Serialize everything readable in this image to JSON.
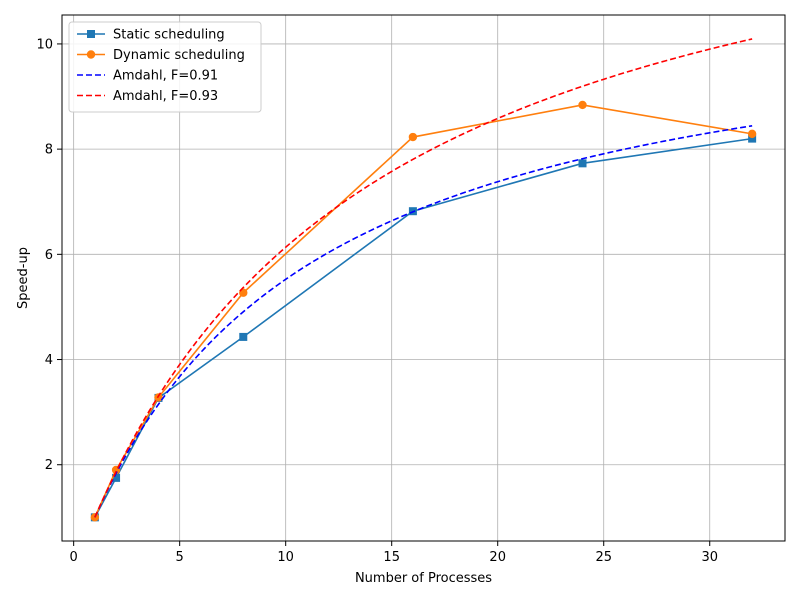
{
  "chart_data": {
    "type": "line",
    "xlabel": "Number of Processes",
    "ylabel": "Speed-up",
    "xlim": [
      -0.55,
      33.55
    ],
    "ylim": [
      0.55,
      10.55
    ],
    "xticks": [
      0,
      5,
      10,
      15,
      20,
      25,
      30
    ],
    "yticks": [
      2,
      4,
      6,
      8,
      10
    ],
    "grid": true,
    "legend_position": "top-left",
    "series": [
      {
        "name": "Static scheduling",
        "color": "#1f77b4",
        "style": "solid",
        "marker": "square",
        "x": [
          1,
          2,
          4,
          8,
          16,
          24,
          32
        ],
        "y": [
          1.0,
          1.75,
          3.27,
          4.43,
          6.82,
          7.73,
          8.2
        ]
      },
      {
        "name": "Dynamic scheduling",
        "color": "#ff7f0e",
        "style": "solid",
        "marker": "circle",
        "x": [
          1,
          2,
          4,
          8,
          16,
          24,
          32
        ],
        "y": [
          1.0,
          1.9,
          3.28,
          5.27,
          8.23,
          8.84,
          8.29
        ]
      },
      {
        "name": "Amdahl, F=0.91",
        "color": "#0000ff",
        "style": "dashed",
        "marker": "none",
        "amdahl_f": 0.91,
        "x_range": [
          1,
          32
        ]
      },
      {
        "name": "Amdahl, F=0.93",
        "color": "#ff0000",
        "style": "dashed",
        "marker": "none",
        "amdahl_f": 0.93,
        "x_range": [
          1,
          32
        ]
      }
    ]
  }
}
